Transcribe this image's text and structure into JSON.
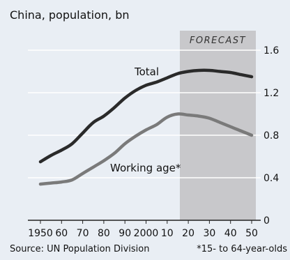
{
  "header": {
    "title": "China, population, bn"
  },
  "footer": {
    "source": "Source: UN Population Division",
    "footnote": "*15- to 64-year-olds"
  },
  "colors": {
    "background": "#e9eef4",
    "forecast_band": "#c8c8cb",
    "total_line": "#2a2a2a",
    "working_line": "#7a7a7a",
    "gridline": "#ffffff",
    "text": "#111111"
  },
  "chart_data": {
    "type": "line",
    "title": "China, population, bn",
    "xlabel": "",
    "ylabel": "",
    "xlim": [
      1950,
      2050
    ],
    "ylim": [
      0,
      1.6
    ],
    "grid": true,
    "y_ticks": [
      0,
      0.4,
      0.8,
      1.2,
      1.6
    ],
    "y_tick_labels": [
      "0",
      "0.4",
      "0.8",
      "1.2",
      "1.6"
    ],
    "x_ticks": [
      1950,
      1960,
      1970,
      1980,
      1990,
      2000,
      2010,
      2020,
      2030,
      2040,
      2050
    ],
    "x_tick_labels": [
      "1950",
      "60",
      "70",
      "80",
      "90",
      "2000",
      "10",
      "20",
      "30",
      "40",
      "50"
    ],
    "forecast": {
      "label": "FORECAST",
      "start": 2016,
      "end": 2050
    },
    "series": [
      {
        "name": "Total",
        "x": [
          1950,
          1955,
          1960,
          1965,
          1970,
          1975,
          1980,
          1985,
          1990,
          1995,
          2000,
          2005,
          2010,
          2015,
          2020,
          2025,
          2030,
          2035,
          2040,
          2045,
          2050
        ],
        "values": [
          0.55,
          0.61,
          0.66,
          0.72,
          0.82,
          0.92,
          0.98,
          1.06,
          1.15,
          1.22,
          1.27,
          1.3,
          1.34,
          1.38,
          1.4,
          1.41,
          1.41,
          1.4,
          1.39,
          1.37,
          1.35
        ]
      },
      {
        "name": "Working age*",
        "x": [
          1950,
          1955,
          1960,
          1965,
          1970,
          1975,
          1980,
          1985,
          1990,
          1995,
          2000,
          2005,
          2010,
          2015,
          2020,
          2025,
          2030,
          2035,
          2040,
          2045,
          2050
        ],
        "values": [
          0.34,
          0.35,
          0.36,
          0.38,
          0.44,
          0.5,
          0.56,
          0.63,
          0.72,
          0.79,
          0.85,
          0.9,
          0.97,
          1.0,
          0.99,
          0.98,
          0.96,
          0.92,
          0.88,
          0.84,
          0.8
        ]
      }
    ]
  }
}
